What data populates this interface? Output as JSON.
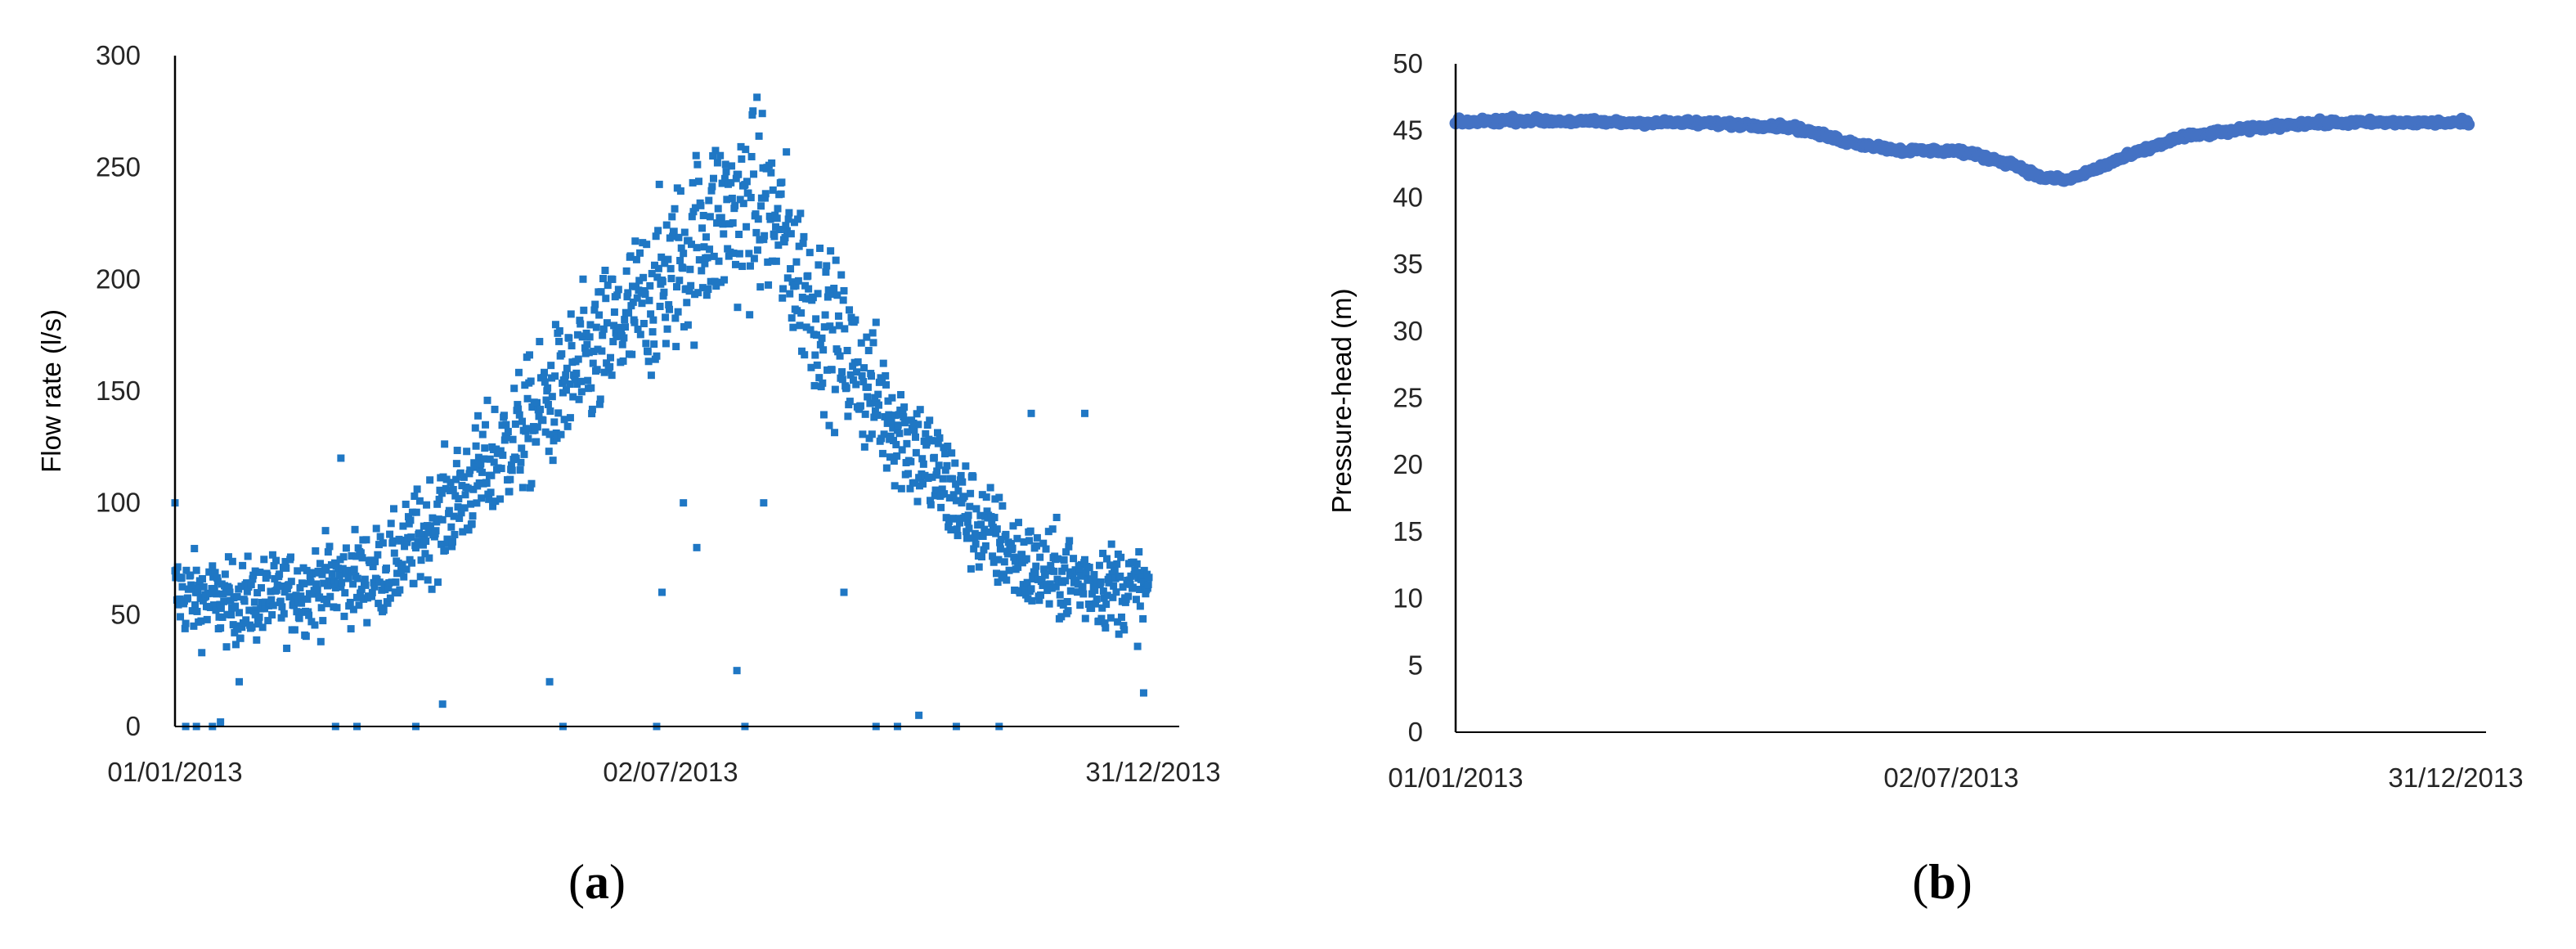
{
  "chart_data": [
    {
      "type": "scatter",
      "panel_label": "a",
      "xlabel": "",
      "ylabel": "Flow rate (l/s)",
      "x_tick_labels": [
        "01/01/2013",
        "02/07/2013",
        "31/12/2013"
      ],
      "y_tick_labels": [
        "0",
        "50",
        "100",
        "150",
        "200",
        "250",
        "300"
      ],
      "xlim": [
        "01/01/2013",
        "31/12/2013"
      ],
      "ylim": [
        0,
        300
      ],
      "grid": false,
      "marker": "square",
      "color": "#1f77c4",
      "trend_day_of_year": [
        0,
        20,
        40,
        60,
        80,
        100,
        120,
        140,
        160,
        180,
        200,
        220,
        240,
        260,
        280,
        300,
        320,
        340,
        364
      ],
      "trend_flow": [
        60,
        55,
        58,
        65,
        70,
        95,
        120,
        145,
        170,
        195,
        225,
        235,
        185,
        150,
        120,
        90,
        70,
        65,
        60
      ],
      "outlier_points": [
        [
          0,
          100
        ],
        [
          4,
          0
        ],
        [
          8,
          0
        ],
        [
          14,
          0
        ],
        [
          17,
          2
        ],
        [
          24,
          20
        ],
        [
          30,
          50
        ],
        [
          60,
          0
        ],
        [
          62,
          120
        ],
        [
          68,
          0
        ],
        [
          90,
          0
        ],
        [
          100,
          10
        ],
        [
          140,
          20
        ],
        [
          145,
          0
        ],
        [
          180,
          0
        ],
        [
          182,
          60
        ],
        [
          190,
          100
        ],
        [
          195,
          80
        ],
        [
          210,
          25
        ],
        [
          213,
          0
        ],
        [
          220,
          100
        ],
        [
          250,
          60
        ],
        [
          262,
          0
        ],
        [
          270,
          0
        ],
        [
          278,
          5
        ],
        [
          292,
          0
        ],
        [
          308,
          0
        ],
        [
          320,
          140
        ],
        [
          340,
          140
        ],
        [
          362,
          15
        ]
      ]
    },
    {
      "type": "scatter",
      "panel_label": "b",
      "xlabel": "",
      "ylabel": "Pressure-head  (m)",
      "x_tick_labels": [
        "01/01/2013",
        "02/07/2013",
        "31/12/2013"
      ],
      "y_tick_labels": [
        "0",
        "5",
        "10",
        "15",
        "20",
        "25",
        "30",
        "35",
        "40",
        "45",
        "50"
      ],
      "xlim": [
        "01/01/2013",
        "31/12/2013"
      ],
      "ylim": [
        0,
        50
      ],
      "grid": false,
      "marker": "circle",
      "color": "#4472c4",
      "trend_day_of_year": [
        0,
        20,
        40,
        60,
        80,
        100,
        120,
        140,
        160,
        180,
        200,
        210,
        220,
        240,
        260,
        280,
        300,
        320,
        340,
        364
      ],
      "trend_head": [
        45.6,
        45.8,
        45.7,
        45.6,
        45.6,
        45.5,
        45.3,
        44.2,
        43.5,
        43.5,
        42.5,
        41.5,
        41.3,
        43.0,
        44.5,
        45.0,
        45.5,
        45.6,
        45.6,
        45.6
      ]
    }
  ]
}
